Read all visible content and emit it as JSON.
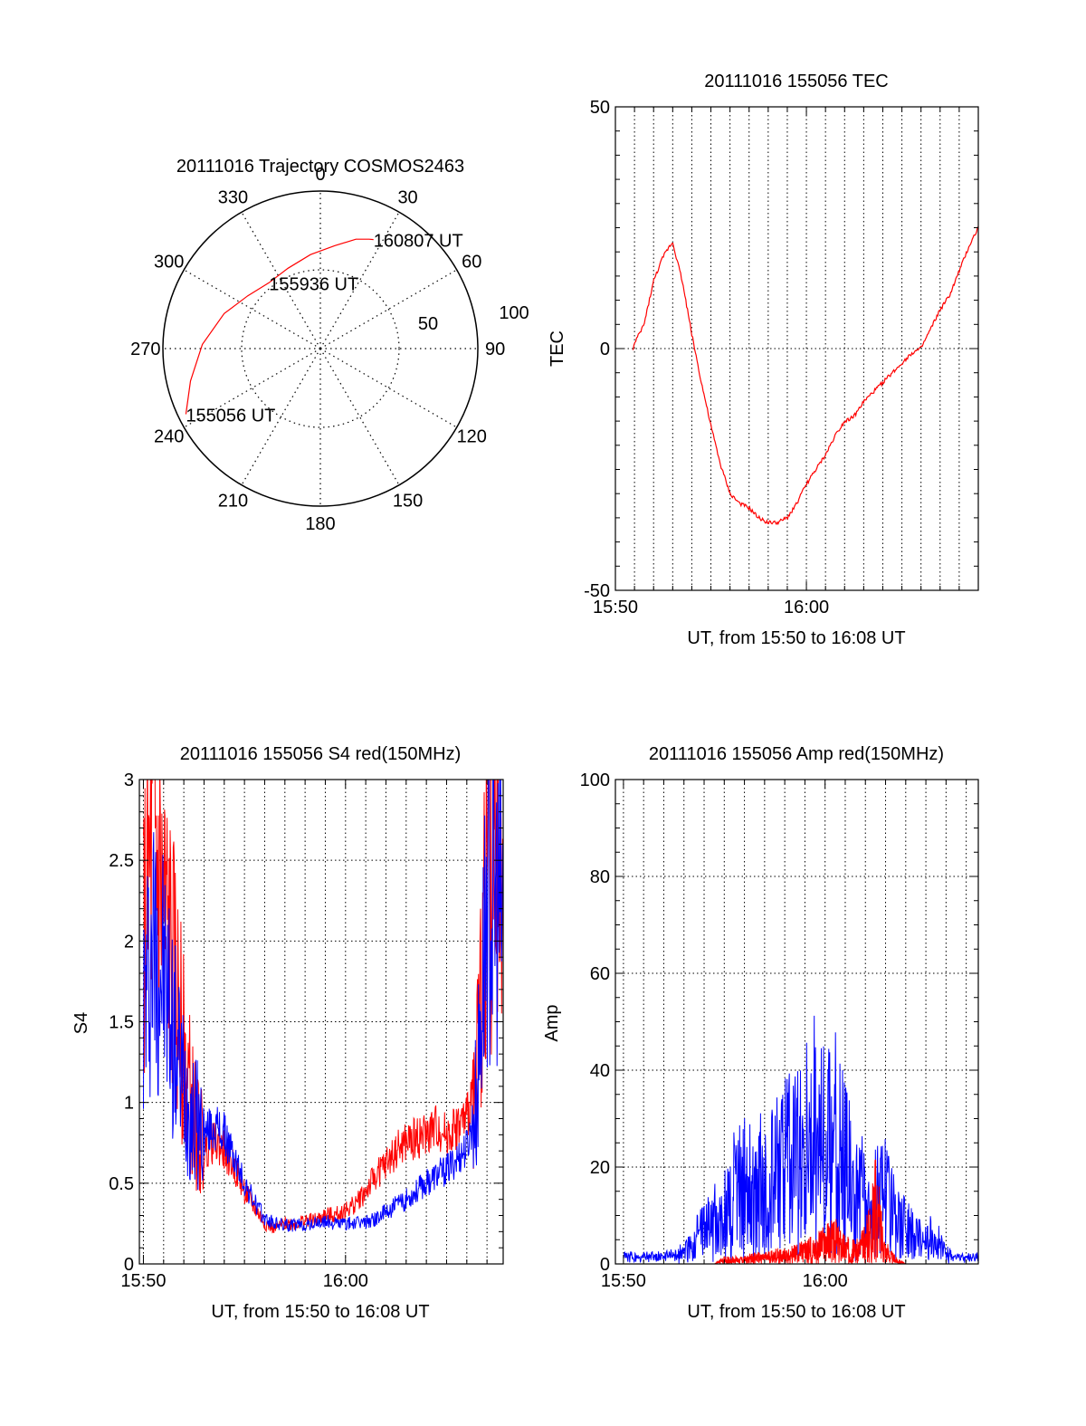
{
  "chart_data": [
    {
      "type": "polar",
      "title": "20111016 Trajectory COSMOS2463",
      "azimuth_labels": [
        "0",
        "30",
        "60",
        "90",
        "120",
        "150",
        "180",
        "210",
        "240",
        "270",
        "300",
        "330"
      ],
      "elevation_ring_labels": [
        "50",
        "100"
      ],
      "trajectory": {
        "color": "#ff0000",
        "points_az_r": [
          [
            244,
            95
          ],
          [
            256,
            85
          ],
          [
            272,
            75
          ],
          [
            290,
            65
          ],
          [
            306,
            57
          ],
          [
            322,
            53
          ],
          [
            338,
            55
          ],
          [
            354,
            60
          ],
          [
            8,
            66
          ],
          [
            18,
            73
          ],
          [
            24,
            76
          ],
          [
            26,
            77
          ]
        ]
      },
      "annotations": [
        {
          "text": "155056 UT",
          "az": 244,
          "r": 95
        },
        {
          "text": "155936 UT",
          "az": 322,
          "r": 53
        },
        {
          "text": "160807 UT",
          "az": 26,
          "r": 77
        }
      ]
    },
    {
      "type": "line",
      "title": "20111016 155056 TEC",
      "xlabel": "UT, from 15:50 to 16:08 UT",
      "ylabel": "TEC",
      "xlim": [
        0,
        19
      ],
      "ylim": [
        -50,
        50
      ],
      "x_ticks": [
        {
          "v": 0,
          "label": "15:50"
        },
        {
          "v": 10,
          "label": "16:00"
        }
      ],
      "y_ticks": [
        {
          "v": -50,
          "label": "-50"
        },
        {
          "v": 0,
          "label": "0"
        },
        {
          "v": 50,
          "label": "50"
        }
      ],
      "grid": true,
      "series": [
        {
          "color": "#ff0000",
          "x": [
            0.93,
            1.0,
            1.5,
            2.0,
            2.5,
            2.8,
            3.0,
            3.5,
            4.0,
            4.5,
            5.0,
            5.5,
            6.0,
            6.5,
            7.0,
            7.5,
            8.0,
            8.5,
            9.0,
            9.5,
            10.0,
            10.5,
            11.0,
            11.5,
            12.0,
            12.5,
            13.0,
            13.5,
            14.0,
            14.5,
            15.0,
            15.5,
            16.0,
            16.5,
            17.0,
            17.5,
            18.0,
            18.5,
            19.0
          ],
          "y": [
            0,
            1,
            5,
            14,
            19,
            21,
            22,
            14,
            3,
            -7,
            -16,
            -24,
            -30,
            -32,
            -33,
            -35,
            -36,
            -36,
            -35,
            -32,
            -28,
            -25,
            -22,
            -18,
            -15,
            -14,
            -11,
            -9,
            -7,
            -5,
            -3,
            -1,
            0,
            4,
            8,
            11,
            16,
            21,
            25
          ]
        }
      ]
    },
    {
      "type": "line",
      "title": "20111016 155056 S4 red(150MHz)",
      "xlabel": "UT, from 15:50 to 16:08 UT",
      "ylabel": "S4",
      "xlim": [
        -0.2,
        17.8
      ],
      "ylim": [
        0,
        3
      ],
      "x_ticks": [
        {
          "v": 0,
          "label": "15:50"
        },
        {
          "v": 10,
          "label": "16:00"
        }
      ],
      "y_ticks": [
        {
          "v": 0,
          "label": "0"
        },
        {
          "v": 0.5,
          "label": "0.5"
        },
        {
          "v": 1,
          "label": "1"
        },
        {
          "v": 1.5,
          "label": "1.5"
        },
        {
          "v": 2,
          "label": "2"
        },
        {
          "v": 2.5,
          "label": "2.5"
        },
        {
          "v": 3,
          "label": "3"
        }
      ],
      "grid": true,
      "series": [
        {
          "color": "#ff0000",
          "x": [
            0,
            0.5,
            1,
            1.5,
            2,
            2.5,
            3,
            3.5,
            4,
            4.5,
            5,
            5.5,
            6,
            6.5,
            7,
            7.5,
            8,
            8.5,
            9,
            9.5,
            10,
            10.5,
            11,
            11.5,
            12,
            12.5,
            13,
            13.5,
            14,
            14.5,
            15,
            15.5,
            16,
            16.5,
            17,
            17.5,
            17.8
          ],
          "y": [
            2.0,
            2.6,
            2.2,
            1.8,
            1.3,
            0.9,
            0.7,
            0.75,
            0.7,
            0.6,
            0.45,
            0.35,
            0.25,
            0.22,
            0.25,
            0.25,
            0.27,
            0.27,
            0.3,
            0.3,
            0.33,
            0.38,
            0.45,
            0.55,
            0.62,
            0.7,
            0.75,
            0.78,
            0.8,
            0.85,
            0.8,
            0.85,
            0.9,
            1.2,
            2.5,
            2.3,
            2.0
          ]
        },
        {
          "color": "#0000ff",
          "x": [
            0,
            0.5,
            1,
            1.5,
            2,
            2.5,
            3,
            3.5,
            4,
            4.5,
            5,
            5.5,
            6,
            6.5,
            7,
            7.5,
            8,
            8.5,
            9,
            9.5,
            10,
            10.5,
            11,
            11.5,
            12,
            12.5,
            13,
            13.5,
            14,
            14.5,
            15,
            15.5,
            16,
            16.5,
            17,
            17.5,
            17.8
          ],
          "y": [
            1.6,
            2.0,
            1.8,
            1.4,
            1.1,
            0.9,
            0.8,
            0.85,
            0.8,
            0.65,
            0.5,
            0.38,
            0.28,
            0.25,
            0.24,
            0.24,
            0.24,
            0.25,
            0.26,
            0.25,
            0.25,
            0.25,
            0.26,
            0.28,
            0.32,
            0.36,
            0.4,
            0.45,
            0.5,
            0.55,
            0.58,
            0.65,
            0.72,
            1.0,
            2.3,
            2.2,
            2.1
          ]
        }
      ]
    },
    {
      "type": "line",
      "title": "20111016 155056 Amp red(150MHz)",
      "xlabel": "UT, from 15:50 to 16:08 UT",
      "ylabel": "Amp",
      "xlim": [
        -0.4,
        17.6
      ],
      "ylim": [
        0,
        100
      ],
      "x_ticks": [
        {
          "v": 0,
          "label": "15:50"
        },
        {
          "v": 10,
          "label": "16:00"
        }
      ],
      "y_ticks": [
        {
          "v": 0,
          "label": "0"
        },
        {
          "v": 20,
          "label": "20"
        },
        {
          "v": 40,
          "label": "40"
        },
        {
          "v": 60,
          "label": "60"
        },
        {
          "v": 80,
          "label": "80"
        },
        {
          "v": 100,
          "label": "100"
        }
      ],
      "grid": true,
      "series": [
        {
          "color": "#0000ff",
          "x": [
            0,
            1,
            2,
            3,
            3.5,
            4,
            4.5,
            5,
            5.5,
            6,
            6.5,
            7,
            7.5,
            8,
            8.5,
            9,
            9.5,
            10,
            10.5,
            11,
            11.5,
            12,
            12.5,
            13,
            13.5,
            14,
            14.5,
            15,
            15.5,
            16,
            16.5,
            17,
            17.6
          ],
          "y": [
            1,
            1,
            1,
            2,
            5,
            8,
            10,
            12,
            18,
            22,
            16,
            22,
            20,
            24,
            26,
            28,
            32,
            28,
            30,
            24,
            22,
            16,
            15,
            18,
            10,
            8,
            6,
            5,
            6,
            2,
            1,
            1,
            1
          ]
        },
        {
          "color": "#ff0000",
          "x": [
            4.5,
            5,
            5.5,
            6,
            6.5,
            7,
            7.5,
            8,
            8.5,
            9,
            9.5,
            10,
            10.5,
            11,
            11.5,
            12,
            12.5,
            13,
            13.5,
            14
          ],
          "y": [
            0,
            1,
            1,
            1,
            1.5,
            1.5,
            2,
            2,
            2.5,
            3,
            4,
            5,
            6,
            4,
            3,
            5,
            14,
            3,
            1,
            0
          ]
        }
      ]
    }
  ]
}
